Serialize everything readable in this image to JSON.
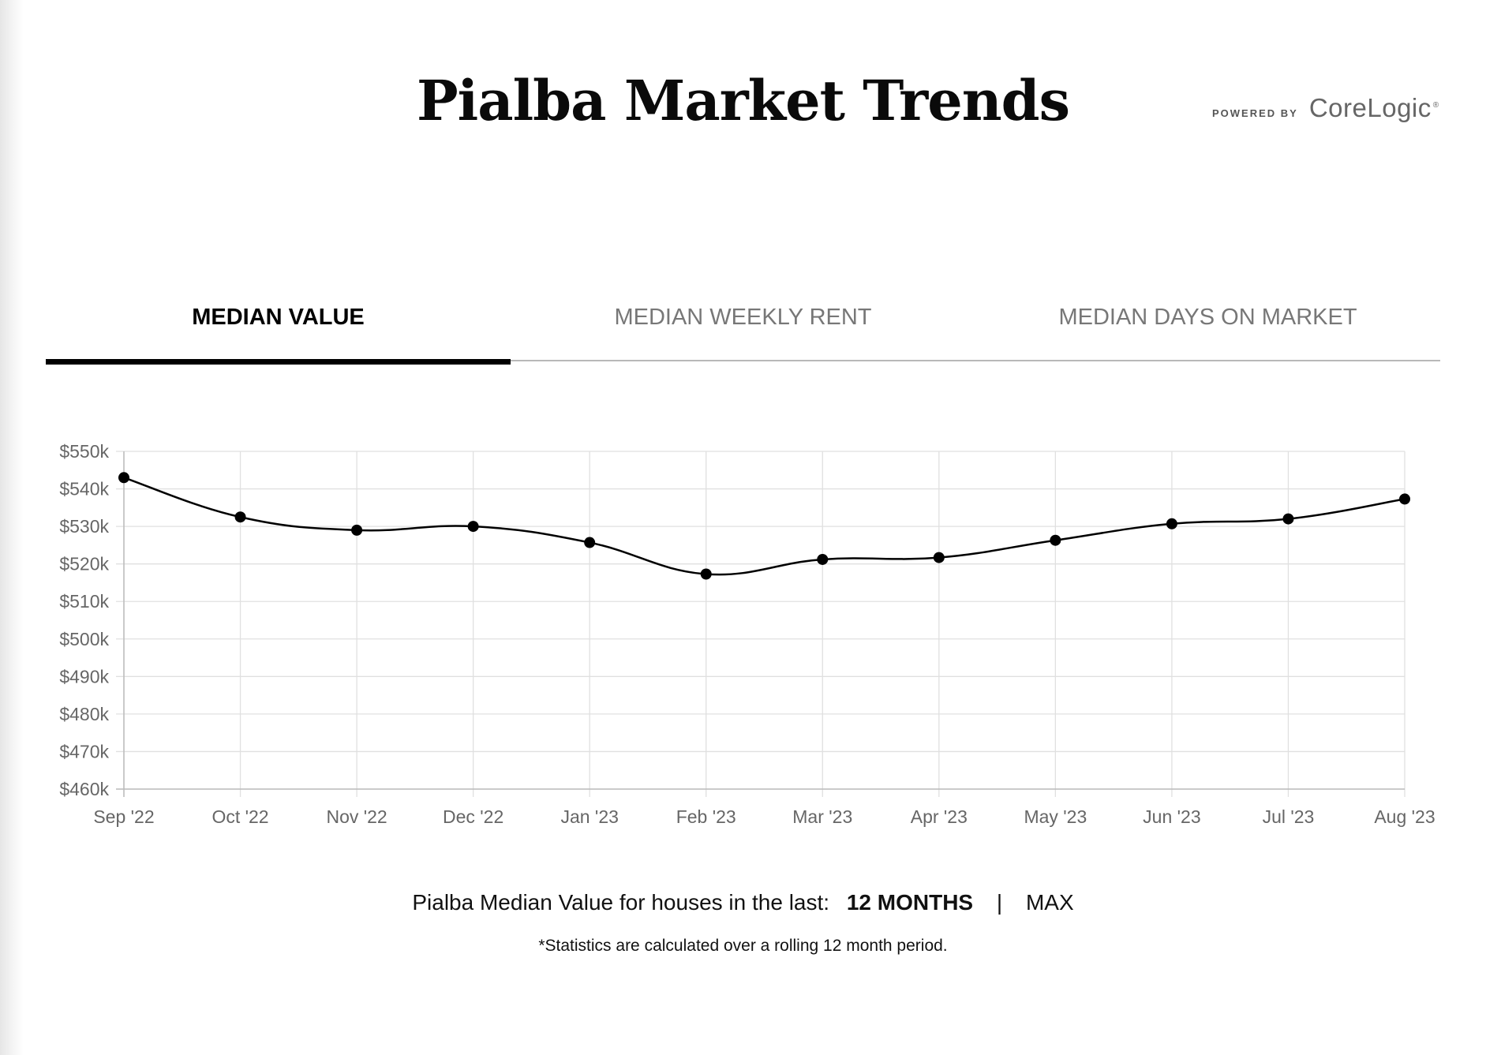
{
  "page": {
    "title": "Pialba Market Trends",
    "powered_by": "POWERED BY",
    "brand": "CoreLogic",
    "brand_mark": "®"
  },
  "tabs": [
    {
      "label": "MEDIAN VALUE",
      "active": true
    },
    {
      "label": "MEDIAN WEEKLY RENT",
      "active": false
    },
    {
      "label": "MEDIAN DAYS ON MARKET",
      "active": false
    }
  ],
  "chart_data": {
    "type": "line",
    "title": "",
    "xlabel": "",
    "ylabel": "",
    "categories": [
      "Sep '22",
      "Oct '22",
      "Nov '22",
      "Dec '22",
      "Jan '23",
      "Feb '23",
      "Mar '23",
      "Apr '23",
      "May '23",
      "Jun '23",
      "Jul '23",
      "Aug '23"
    ],
    "series": [
      {
        "values": [
          543,
          532.5,
          529,
          530,
          525.7,
          517.3,
          521.2,
          521.7,
          526.3,
          530.7,
          532,
          537.3
        ]
      }
    ],
    "y_unit_prefix": "$",
    "y_unit_suffix": "k",
    "ylim": [
      460,
      550
    ],
    "yticks": [
      "$550k",
      "$540k",
      "$530k",
      "$520k",
      "$510k",
      "$500k",
      "$490k",
      "$480k",
      "$470k",
      "$460k"
    ],
    "grid": true,
    "legend": "none",
    "line_color": "#000000",
    "grid_color": "#e0e0e0"
  },
  "footer": {
    "caption_prefix": "Pialba Median Value for houses in the last:",
    "option_active": "12 MONTHS",
    "separator": "|",
    "option_other": "MAX",
    "note": "*Statistics are calculated over a rolling 12 month period."
  }
}
